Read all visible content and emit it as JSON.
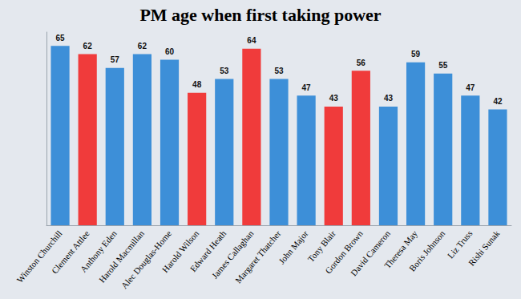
{
  "chart_data": {
    "type": "bar",
    "title": "PM age when first taking power",
    "categories": [
      "Winston Churchill",
      "Clement Attlee",
      "Anthony Eden",
      "Harold Macmillan",
      "Alec Douglas-Home",
      "Harold Wilson",
      "Edward Heath",
      "James Callaghan",
      "Margaret Thatcher",
      "John Major",
      "Tony Blair",
      "Gordon Brown",
      "David Cameron",
      "Theresa May",
      "Boris Johnson",
      "Liz Truss",
      "Rishi Sunak"
    ],
    "values": [
      65,
      62,
      57,
      62,
      60,
      48,
      53,
      64,
      53,
      47,
      43,
      56,
      43,
      59,
      55,
      47,
      42
    ],
    "colors": [
      "#3d8fd8",
      "#f03b3b",
      "#3d8fd8",
      "#3d8fd8",
      "#3d8fd8",
      "#f03b3b",
      "#3d8fd8",
      "#f03b3b",
      "#3d8fd8",
      "#3d8fd8",
      "#f03b3b",
      "#f03b3b",
      "#3d8fd8",
      "#3d8fd8",
      "#3d8fd8",
      "#3d8fd8",
      "#3d8fd8"
    ],
    "ylim": [
      0,
      70
    ],
    "yticks": [
      0,
      70
    ],
    "grid": false,
    "data_labels": true,
    "tick_labels": "x"
  }
}
